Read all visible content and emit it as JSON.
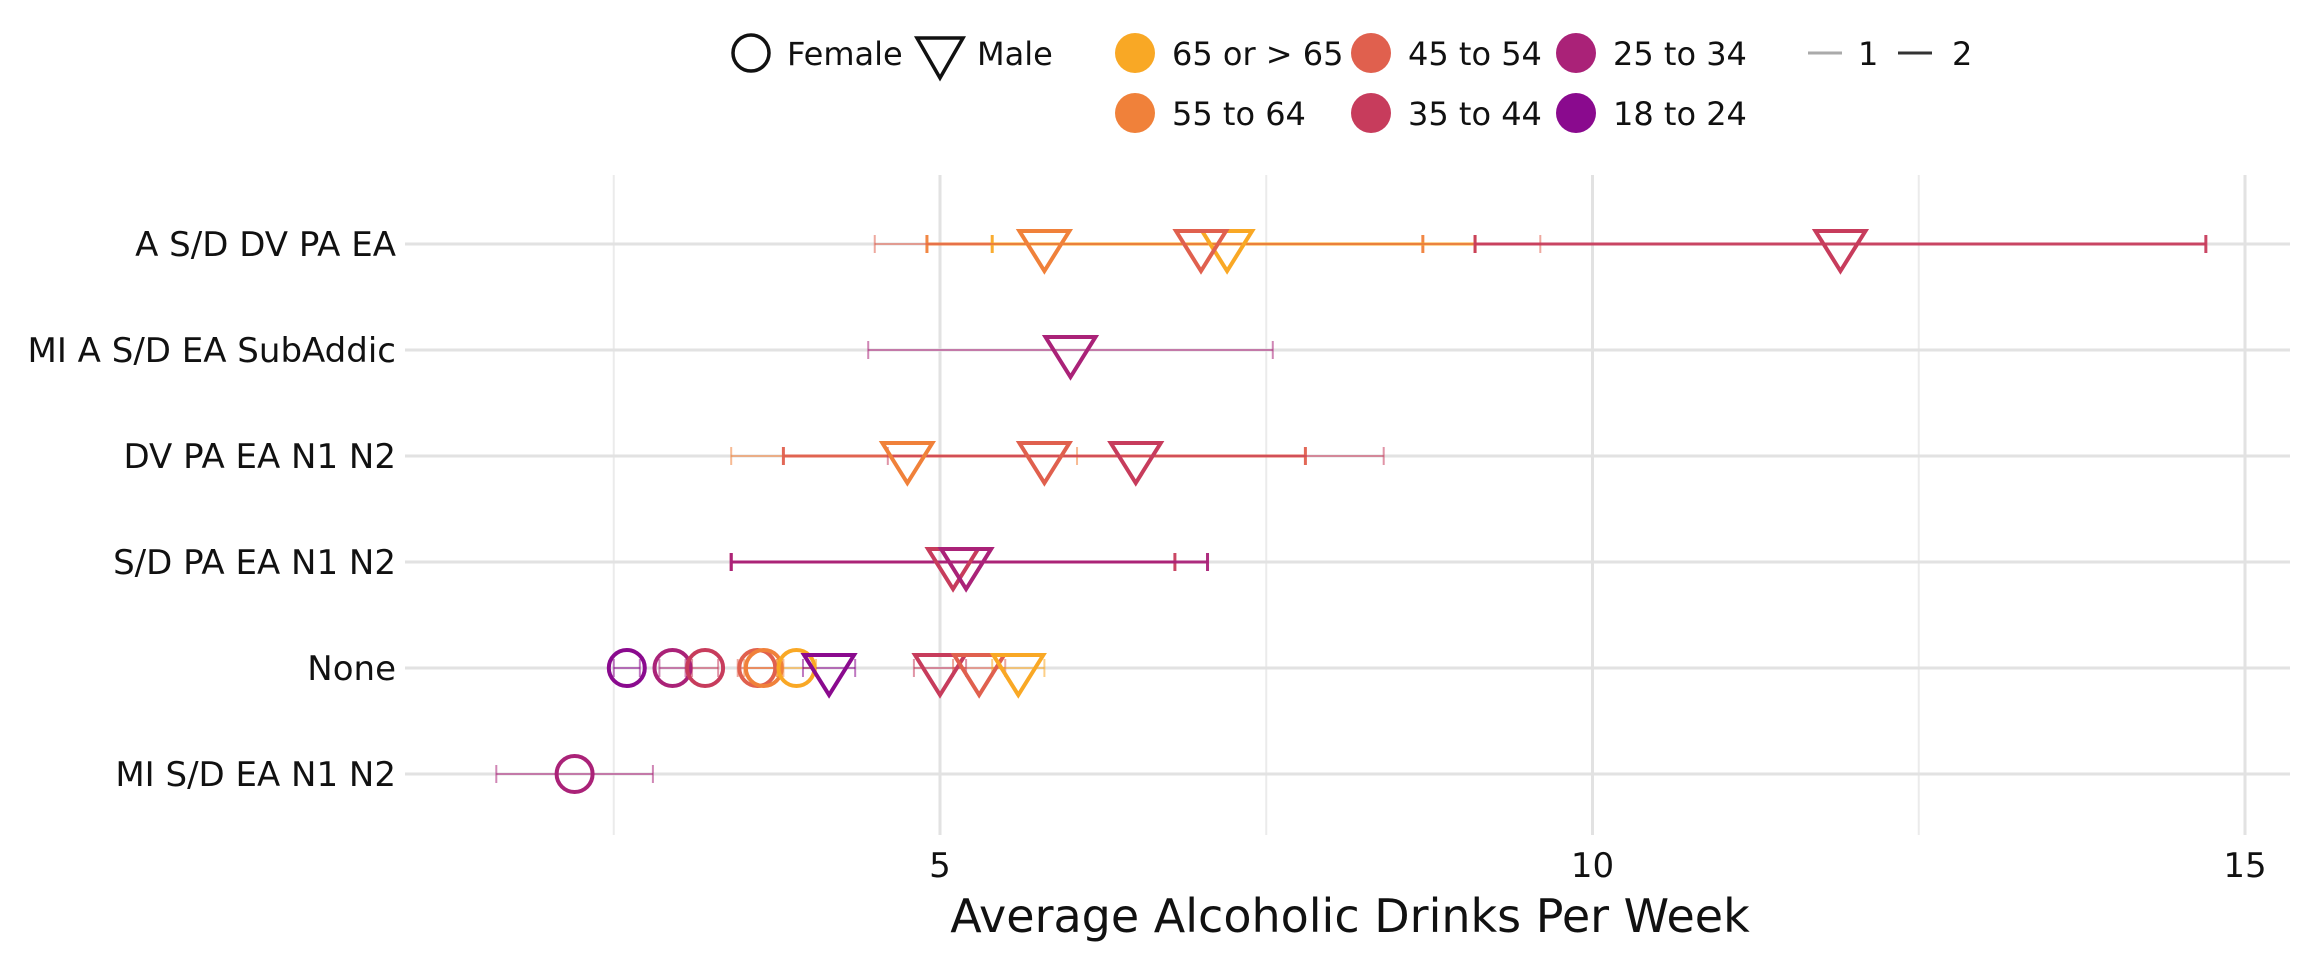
{
  "chart_data": {
    "type": "scatter",
    "title": "",
    "xlabel": "Average Alcoholic Drinks Per Week",
    "ylabel": "",
    "xlim": [
      0,
      15
    ],
    "x_ticks": [
      5,
      10,
      15
    ],
    "x_minor_gridlines": [
      2.5,
      7.5,
      12.5
    ],
    "grid": true,
    "legend_position": "top",
    "categories": [
      "A S/D DV PA EA",
      "MI A S/D EA SubAddic",
      "DV PA EA N1 N2",
      "S/D PA EA N1 N2",
      "None",
      "MI S/D EA N1 N2"
    ],
    "legend": {
      "shape": [
        {
          "label": "Female",
          "shape": "circle"
        },
        {
          "label": "Male",
          "shape": "triangle-down"
        }
      ],
      "age": [
        {
          "label": "65 or > 65",
          "color": "#f9a825"
        },
        {
          "label": "55 to 64",
          "color": "#f0813a"
        },
        {
          "label": "45 to 54",
          "color": "#e0604e"
        },
        {
          "label": "35 to 44",
          "color": "#c73c5c"
        },
        {
          "label": "25 to 34",
          "color": "#aa2278"
        },
        {
          "label": "18 to 24",
          "color": "#8a0a8e"
        }
      ],
      "line": [
        {
          "label": "1",
          "color": "#aaaaaa"
        },
        {
          "label": "2",
          "color": "#333333"
        }
      ]
    },
    "points": [
      {
        "category": "A S/D DV PA EA",
        "gender": "Male",
        "age": "55 to 64",
        "x": 5.8,
        "lo": 4.9,
        "hi": 8.7,
        "weight": 2
      },
      {
        "category": "A S/D DV PA EA",
        "gender": "Male",
        "age": "65 or > 65",
        "x": 7.2,
        "lo": 5.4,
        "hi": 9.1,
        "weight": 2
      },
      {
        "category": "A S/D DV PA EA",
        "gender": "Male",
        "age": "45 to 54",
        "x": 7.0,
        "lo": 4.5,
        "hi": 9.6,
        "weight": 1
      },
      {
        "category": "A S/D DV PA EA",
        "gender": "Male",
        "age": "35 to 44",
        "x": 11.9,
        "lo": 9.1,
        "hi": 14.7,
        "weight": 2
      },
      {
        "category": "MI A S/D EA SubAddic",
        "gender": "Male",
        "age": "25 to 34",
        "x": 6.0,
        "lo": 4.45,
        "hi": 7.55,
        "weight": 1
      },
      {
        "category": "DV PA EA N1 N2",
        "gender": "Male",
        "age": "55 to 64",
        "x": 4.75,
        "lo": 3.4,
        "hi": 6.05,
        "weight": 1
      },
      {
        "category": "DV PA EA N1 N2",
        "gender": "Male",
        "age": "45 to 54",
        "x": 5.8,
        "lo": 3.8,
        "hi": 7.8,
        "weight": 2
      },
      {
        "category": "DV PA EA N1 N2",
        "gender": "Male",
        "age": "35 to 44",
        "x": 6.5,
        "lo": 4.6,
        "hi": 8.4,
        "weight": 1
      },
      {
        "category": "S/D PA EA N1 N2",
        "gender": "Male",
        "age": "35 to 44",
        "x": 5.1,
        "lo": 3.4,
        "hi": 6.8,
        "weight": 2
      },
      {
        "category": "S/D PA EA N1 N2",
        "gender": "Male",
        "age": "25 to 34",
        "x": 5.2,
        "lo": 3.4,
        "hi": 7.05,
        "weight": 2
      },
      {
        "category": "None",
        "gender": "Female",
        "age": "18 to 24",
        "x": 2.6,
        "lo": 2.5,
        "hi": 2.7,
        "weight": 1
      },
      {
        "category": "None",
        "gender": "Female",
        "age": "25 to 34",
        "x": 2.95,
        "lo": 2.85,
        "hi": 3.05,
        "weight": 1
      },
      {
        "category": "None",
        "gender": "Female",
        "age": "35 to 44",
        "x": 3.2,
        "lo": 3.1,
        "hi": 3.3,
        "weight": 1
      },
      {
        "category": "None",
        "gender": "Female",
        "age": "45 to 54",
        "x": 3.6,
        "lo": 3.45,
        "hi": 3.75,
        "weight": 1
      },
      {
        "category": "None",
        "gender": "Female",
        "age": "55 to 64",
        "x": 3.65,
        "lo": 3.5,
        "hi": 3.8,
        "weight": 1
      },
      {
        "category": "None",
        "gender": "Female",
        "age": "65 or > 65",
        "x": 3.9,
        "lo": 3.75,
        "hi": 4.05,
        "weight": 1
      },
      {
        "category": "None",
        "gender": "Male",
        "age": "18 to 24",
        "x": 4.15,
        "lo": 3.95,
        "hi": 4.35,
        "weight": 1
      },
      {
        "category": "None",
        "gender": "Male",
        "age": "35 to 44",
        "x": 5.0,
        "lo": 4.8,
        "hi": 5.2,
        "weight": 1
      },
      {
        "category": "None",
        "gender": "Male",
        "age": "45 to 54",
        "x": 5.3,
        "lo": 5.1,
        "hi": 5.5,
        "weight": 1
      },
      {
        "category": "None",
        "gender": "Male",
        "age": "65 or > 65",
        "x": 5.6,
        "lo": 5.4,
        "hi": 5.8,
        "weight": 1
      },
      {
        "category": "MI S/D EA N1 N2",
        "gender": "Female",
        "age": "25 to 34",
        "x": 2.2,
        "lo": 1.6,
        "hi": 2.8,
        "weight": 1
      }
    ]
  }
}
